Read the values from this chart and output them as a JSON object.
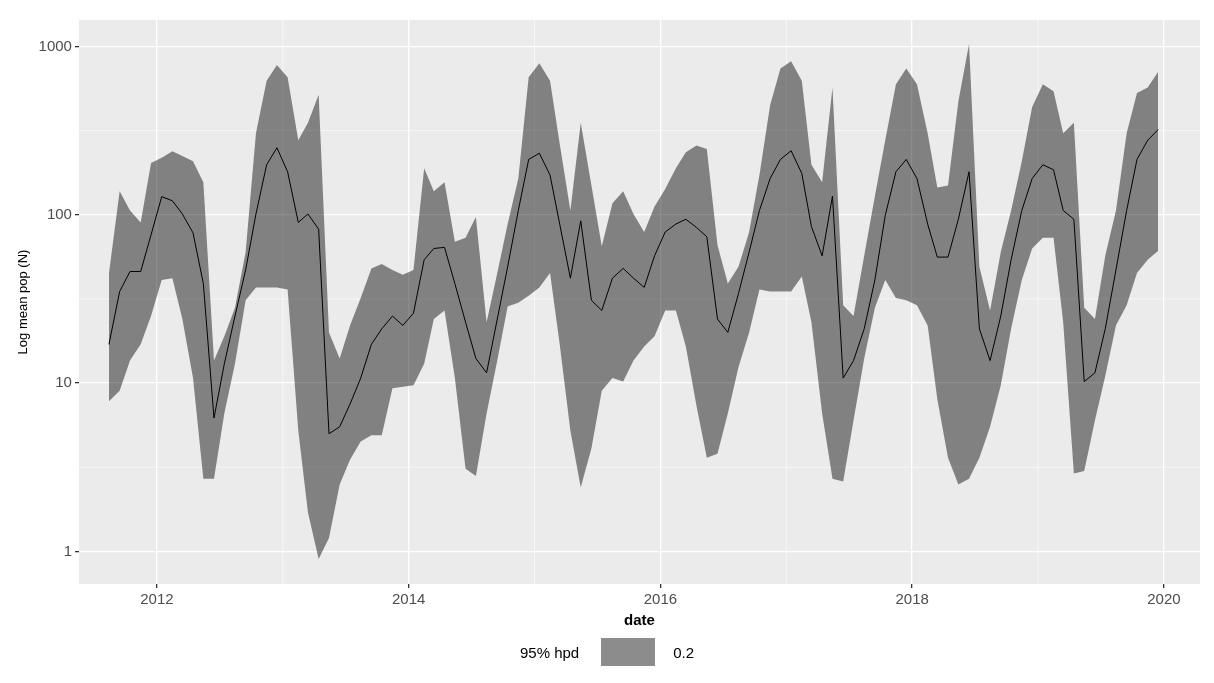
{
  "chart_data": {
    "type": "line",
    "xlabel": "date",
    "ylabel": "Log mean pop (N)",
    "legend_title": "95% hpd",
    "legend": "bottom",
    "grid": true,
    "log": "y",
    "xlim": [
      "2011-05-20",
      "2020-04-15"
    ],
    "xticks": [
      "2012",
      "2014",
      "2016",
      "2018",
      "2020"
    ],
    "ylim": [
      0.64,
      1435
    ],
    "yticks": [
      1,
      10,
      100,
      1000
    ],
    "x": [
      "2011-08-15",
      "2011-09-15",
      "2011-10-15",
      "2011-11-15",
      "2011-12-15",
      "2012-01-15",
      "2012-02-15",
      "2012-03-15",
      "2012-04-15",
      "2012-05-15",
      "2012-06-15",
      "2012-07-15",
      "2012-08-15",
      "2012-09-15",
      "2012-10-15",
      "2012-11-15",
      "2012-12-15",
      "2013-01-15",
      "2013-02-15",
      "2013-03-15",
      "2013-04-15",
      "2013-05-15",
      "2013-06-15",
      "2013-07-15",
      "2013-08-15",
      "2013-09-15",
      "2013-10-15",
      "2013-11-15",
      "2013-12-15",
      "2014-01-15",
      "2014-02-15",
      "2014-03-15",
      "2014-04-15",
      "2014-05-15",
      "2014-06-15",
      "2014-07-15",
      "2014-08-15",
      "2014-09-15",
      "2014-10-15",
      "2014-11-15",
      "2014-12-15",
      "2015-01-15",
      "2015-02-15",
      "2015-03-15",
      "2015-04-15",
      "2015-05-15",
      "2015-06-15",
      "2015-07-15",
      "2015-08-15",
      "2015-09-15",
      "2015-10-15",
      "2015-11-15",
      "2015-12-15",
      "2016-01-15",
      "2016-02-15",
      "2016-03-15",
      "2016-04-15",
      "2016-05-15",
      "2016-06-15",
      "2016-07-15",
      "2016-08-15",
      "2016-09-15",
      "2016-10-15",
      "2016-11-15",
      "2016-12-15",
      "2017-01-15",
      "2017-02-15",
      "2017-03-15",
      "2017-04-15",
      "2017-05-15",
      "2017-06-15",
      "2017-07-15",
      "2017-08-15",
      "2017-09-15",
      "2017-10-15",
      "2017-11-15",
      "2017-12-15",
      "2018-01-15",
      "2018-02-15",
      "2018-03-15",
      "2018-04-15",
      "2018-05-15",
      "2018-06-15",
      "2018-07-15",
      "2018-08-15",
      "2018-09-15",
      "2018-10-15",
      "2018-11-15",
      "2018-12-15",
      "2019-01-15",
      "2019-02-15",
      "2019-03-15",
      "2019-04-15",
      "2019-05-15",
      "2019-06-15",
      "2019-07-15",
      "2019-08-15",
      "2019-09-15",
      "2019-10-15",
      "2019-11-15",
      "2019-12-15"
    ],
    "series": [
      {
        "name": "0.2",
        "color": "#000000",
        "values": [
          17,
          35,
          46,
          46,
          76,
          128,
          121,
          101,
          78,
          39,
          6.2,
          13,
          25,
          47,
          101,
          198,
          250,
          180,
          90,
          101,
          82,
          5.0,
          5.5,
          7.5,
          10.7,
          17,
          21,
          25,
          22,
          26,
          54,
          63,
          64,
          39,
          23,
          14,
          11.5,
          24,
          49,
          106,
          213,
          232,
          172,
          88,
          42,
          92,
          31,
          27,
          42,
          48,
          42,
          37,
          57,
          79,
          88,
          94,
          84,
          74,
          24,
          20,
          34,
          60,
          106,
          164,
          213,
          240,
          176,
          85,
          57,
          129,
          10.7,
          13.6,
          21,
          41,
          99,
          180,
          213,
          164,
          88,
          56,
          56,
          94,
          180,
          21,
          13.6,
          25,
          54,
          106,
          164,
          198,
          185,
          106,
          94,
          10.2,
          11.5,
          21,
          47,
          106,
          213,
          277,
          320
        ],
        "upper": [
          45,
          138,
          106,
          90,
          203,
          218,
          238,
          223,
          208,
          156,
          13.6,
          19,
          28,
          60,
          305,
          626,
          776,
          656,
          277,
          352,
          516,
          20,
          14,
          22,
          32,
          48,
          51,
          47,
          44,
          47,
          189,
          138,
          156,
          69,
          73,
          97,
          23,
          45,
          88,
          164,
          656,
          794,
          626,
          264,
          106,
          352,
          149,
          65,
          117,
          138,
          101,
          79,
          112,
          142,
          189,
          235,
          258,
          246,
          66,
          39,
          49,
          79,
          172,
          447,
          740,
          815,
          626,
          198,
          156,
          569,
          29,
          25,
          57,
          129,
          277,
          596,
          740,
          596,
          305,
          145,
          149,
          470,
          1035,
          49,
          27,
          60,
          106,
          208,
          436,
          596,
          542,
          305,
          352,
          28,
          24,
          57,
          106,
          305,
          528,
          569,
          705
        ],
        "lower": [
          7.8,
          9.0,
          13.6,
          17,
          25,
          41,
          42,
          24,
          10.7,
          2.7,
          2.7,
          6.6,
          13,
          31,
          37,
          37,
          37,
          36,
          5.2,
          1.7,
          0.9,
          1.2,
          2.5,
          3.5,
          4.5,
          4.9,
          4.9,
          9.3,
          9.5,
          9.7,
          13,
          24,
          27,
          10.7,
          3.1,
          2.8,
          6.6,
          13.6,
          28.5,
          30,
          33,
          37,
          45,
          17,
          5.2,
          2.4,
          4.1,
          9,
          10.7,
          10.2,
          13.6,
          16.5,
          19,
          27,
          27,
          16.5,
          7.3,
          3.6,
          3.8,
          6.6,
          12.4,
          20,
          36,
          35,
          35,
          35,
          43,
          23,
          6.6,
          2.7,
          2.6,
          6.0,
          14,
          28,
          41,
          32,
          31,
          29,
          22,
          8.0,
          3.6,
          2.5,
          2.7,
          3.6,
          5.5,
          9.7,
          21,
          41,
          63,
          73,
          73,
          23,
          2.9,
          3.0,
          6.0,
          11,
          22,
          29,
          45,
          54,
          61
        ]
      }
    ]
  }
}
